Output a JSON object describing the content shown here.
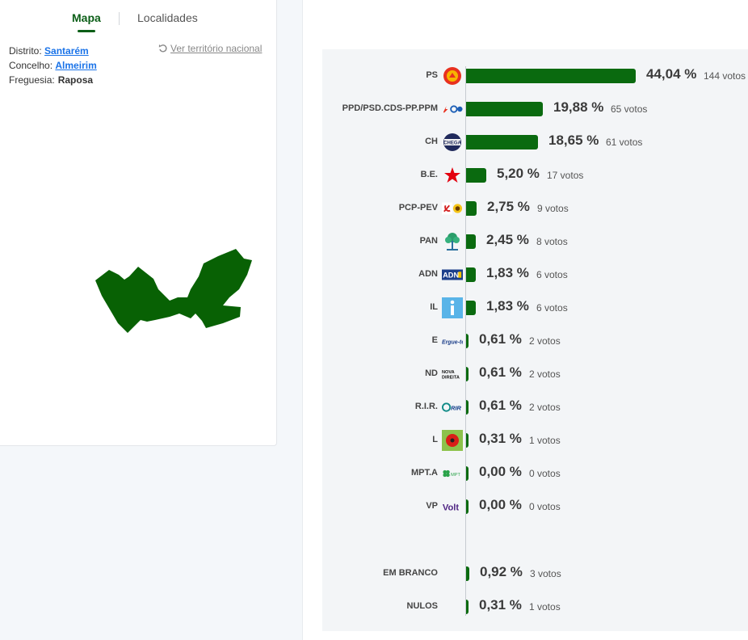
{
  "tabs": {
    "map": "Mapa",
    "localities": "Localidades"
  },
  "breadcrumb": {
    "district_label": "Distrito:",
    "district": "Santarém",
    "council_label": "Concelho:",
    "council": "Almeirim",
    "parish_label": "Freguesia:",
    "parish": "Raposa"
  },
  "national_link": "Ver território nacional",
  "colors": {
    "bar": "#0a6a0f",
    "accent": "#0b5e17",
    "link": "#1a73e8",
    "map_fill": "#086104"
  },
  "parties": [
    {
      "label": "PS",
      "pct": "44,04 %",
      "votes": "144 votos",
      "share": 44.04,
      "icon": "ps-logo-icon"
    },
    {
      "label": "PPD/PSD.CDS-PP.PPM",
      "pct": "19,88 %",
      "votes": "65 votos",
      "share": 19.88,
      "icon": "ad-logo-icon"
    },
    {
      "label": "CH",
      "pct": "18,65 %",
      "votes": "61 votos",
      "share": 18.65,
      "icon": "chega-logo-icon"
    },
    {
      "label": "B.E.",
      "pct": "5,20 %",
      "votes": "17 votos",
      "share": 5.2,
      "icon": "be-star-icon"
    },
    {
      "label": "PCP-PEV",
      "pct": "2,75 %",
      "votes": "9 votos",
      "share": 2.75,
      "icon": "cdu-logo-icon"
    },
    {
      "label": "PAN",
      "pct": "2,45 %",
      "votes": "8 votos",
      "share": 2.45,
      "icon": "pan-tree-icon"
    },
    {
      "label": "ADN",
      "pct": "1,83 %",
      "votes": "6 votos",
      "share": 1.83,
      "icon": "adn-logo-icon"
    },
    {
      "label": "IL",
      "pct": "1,83 %",
      "votes": "6 votos",
      "share": 1.83,
      "icon": "il-logo-icon"
    },
    {
      "label": "E",
      "pct": "0,61 %",
      "votes": "2 votos",
      "share": 0.61,
      "icon": "ergue-te-logo-icon"
    },
    {
      "label": "ND",
      "pct": "0,61 %",
      "votes": "2 votos",
      "share": 0.61,
      "icon": "nova-direita-logo-icon"
    },
    {
      "label": "R.I.R.",
      "pct": "0,61 %",
      "votes": "2 votos",
      "share": 0.61,
      "icon": "rir-logo-icon"
    },
    {
      "label": "L",
      "pct": "0,31 %",
      "votes": "1 votos",
      "share": 0.31,
      "icon": "livre-poppy-icon"
    },
    {
      "label": "MPT.A",
      "pct": "0,00 %",
      "votes": "0 votos",
      "share": 0.0,
      "icon": "mpt-clover-icon"
    },
    {
      "label": "VP",
      "pct": "0,00 %",
      "votes": "0 votos",
      "share": 0.0,
      "icon": "volt-logo-icon"
    }
  ],
  "others": [
    {
      "label": "EM BRANCO",
      "pct": "0,92 %",
      "votes": "3 votos",
      "share": 0.92
    },
    {
      "label": "NULOS",
      "pct": "0,31 %",
      "votes": "1 votos",
      "share": 0.31
    }
  ],
  "logo_text": {
    "chega": "CHEGA",
    "adn": "ADN",
    "ergue": "Ergue-te",
    "nova": "NOVA",
    "direita": "DIREITA",
    "rir": "RIR",
    "mpt": "MPT",
    "volt": "Volt"
  }
}
